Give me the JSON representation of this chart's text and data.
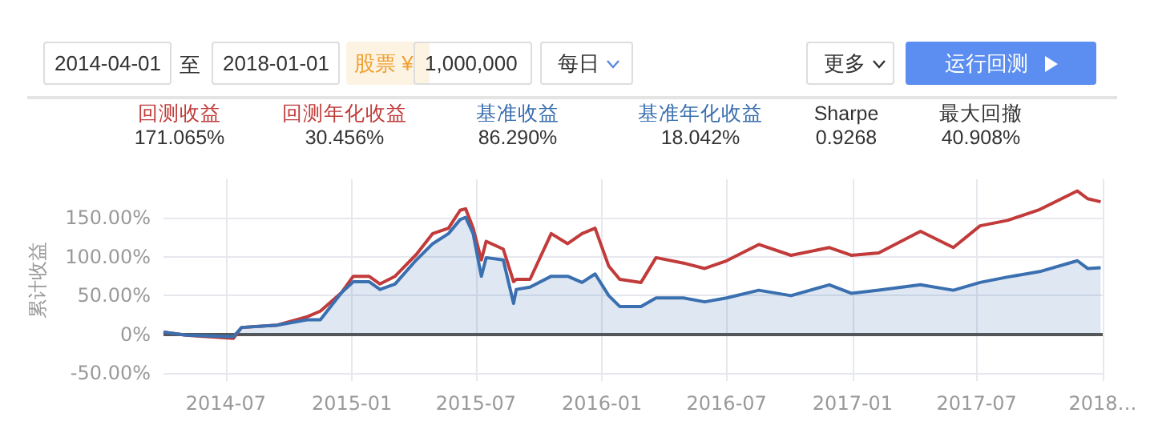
{
  "chart_data": {
    "type": "line",
    "ylabel": "累计收益",
    "annotations": [
      "2014-04-01",
      "至",
      "2018-01-01",
      "股票 ¥",
      "1,000,000",
      "每日",
      "更多",
      "运行回测",
      "回测收益",
      "171.065%",
      "回测年化收益",
      "30.456%",
      "基准收益",
      "86.290%",
      "基准年化收益",
      "18.042%",
      "Sharpe",
      "0.9268",
      "最大回撤",
      "40.908%"
    ],
    "x": [
      "2014-04-01",
      "2014-05-04",
      "2014-07-12",
      "2014-07-24",
      "2014-09-14",
      "2014-10-28",
      "2014-11-16",
      "2014-12-17",
      "2015-01-03",
      "2015-01-26",
      "2015-02-11",
      "2015-03-05",
      "2015-04-05",
      "2015-04-29",
      "2015-05-22",
      "2015-06-08",
      "2015-06-16",
      "2015-06-27",
      "2015-07-09",
      "2015-07-16",
      "2015-08-10",
      "2015-08-25",
      "2015-08-29",
      "2015-09-18",
      "2015-10-19",
      "2015-11-12",
      "2015-12-03",
      "2015-12-22",
      "2016-01-11",
      "2016-01-27",
      "2016-02-27",
      "2016-03-20",
      "2016-04-29",
      "2016-05-30",
      "2016-07-01",
      "2016-08-17",
      "2016-10-03",
      "2016-11-28",
      "2016-12-30",
      "2017-02-08",
      "2017-04-10",
      "2017-05-28",
      "2017-07-06",
      "2017-08-15",
      "2017-10-01",
      "2017-11-25",
      "2017-12-10",
      "2017-12-29"
    ],
    "series": [
      {
        "color": "#c23b3b",
        "values": [
          3,
          -1,
          -5,
          9,
          12,
          23,
          30,
          54,
          75,
          75,
          65,
          75,
          103,
          130,
          137,
          160,
          162,
          137,
          96,
          120,
          110,
          68,
          71,
          71,
          130,
          117,
          130,
          137,
          88,
          71,
          67,
          99,
          92,
          85,
          95,
          116,
          102,
          112,
          102,
          105,
          133,
          112,
          140,
          147,
          161,
          185,
          175,
          171
        ]
      },
      {
        "type": "area",
        "color": "#3a6fb0",
        "values": [
          3,
          -1,
          -3,
          9,
          12,
          19,
          19,
          54,
          68,
          68,
          58,
          65,
          96,
          117,
          130,
          148,
          151,
          130,
          75,
          99,
          96,
          40,
          58,
          61,
          75,
          75,
          67,
          78,
          50,
          36,
          36,
          47,
          47,
          42,
          47,
          57,
          50,
          64,
          53,
          57,
          64,
          57,
          67,
          74,
          81,
          95,
          85,
          86
        ]
      }
    ],
    "xlim": [
      "2014-04-01",
      "2018-01-01"
    ],
    "xticks": [
      {
        "value": "2014-07-01",
        "label": "2014-07"
      },
      {
        "value": "2015-01-01",
        "label": "2015-01"
      },
      {
        "value": "2015-07-01",
        "label": "2015-07"
      },
      {
        "value": "2016-01-01",
        "label": "2016-01"
      },
      {
        "value": "2016-07-01",
        "label": "2016-07"
      },
      {
        "value": "2017-01-01",
        "label": "2017-01"
      },
      {
        "value": "2017-07-01",
        "label": "2017-07"
      },
      {
        "value": "2018-01-01",
        "label": "2018…"
      }
    ],
    "ylim": [
      -60,
      200
    ],
    "yticks": [
      {
        "value": -50,
        "label": "-50.00%"
      },
      {
        "value": 0,
        "label": "0%"
      },
      {
        "value": 50,
        "label": "50.00%"
      },
      {
        "value": 100,
        "label": "100.00%"
      },
      {
        "value": 150,
        "label": "150.00%"
      }
    ],
    "ref_lines": [
      {
        "axis": "y",
        "value": 0,
        "color": "#555555"
      }
    ],
    "grid": true,
    "marker": "none",
    "line_style": "solid"
  }
}
